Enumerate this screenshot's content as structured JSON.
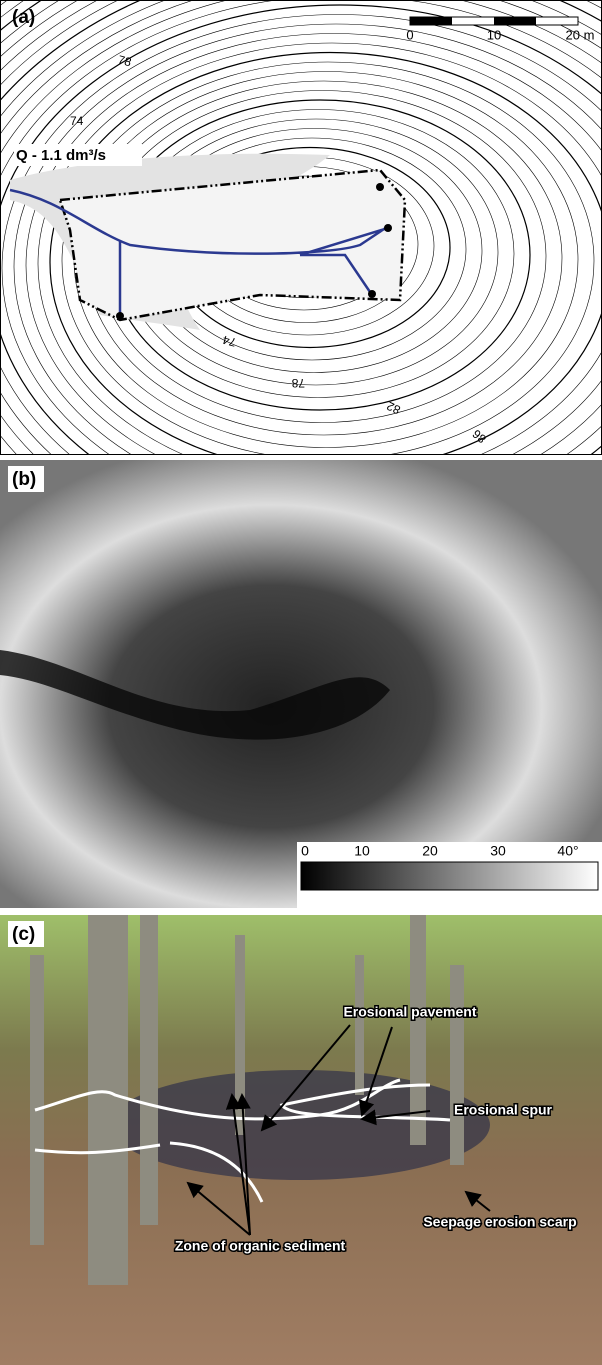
{
  "panels": {
    "a": {
      "label": "(a)",
      "scale_bar": [
        "0",
        "10",
        "20 m"
      ],
      "discharge": "Q - 1.1 dm³/s",
      "contour_labels": [
        "78",
        "74",
        "74",
        "78",
        "82",
        "86"
      ]
    },
    "b": {
      "label": "(b)",
      "colorbar_ticks": [
        "0",
        "10",
        "20",
        "30",
        "40°"
      ]
    },
    "c": {
      "label": "(c)",
      "annotations": [
        "Erosional pavement",
        "Erosional spur",
        "Seepage erosion scarp",
        "Zone of organic sediment"
      ]
    }
  }
}
